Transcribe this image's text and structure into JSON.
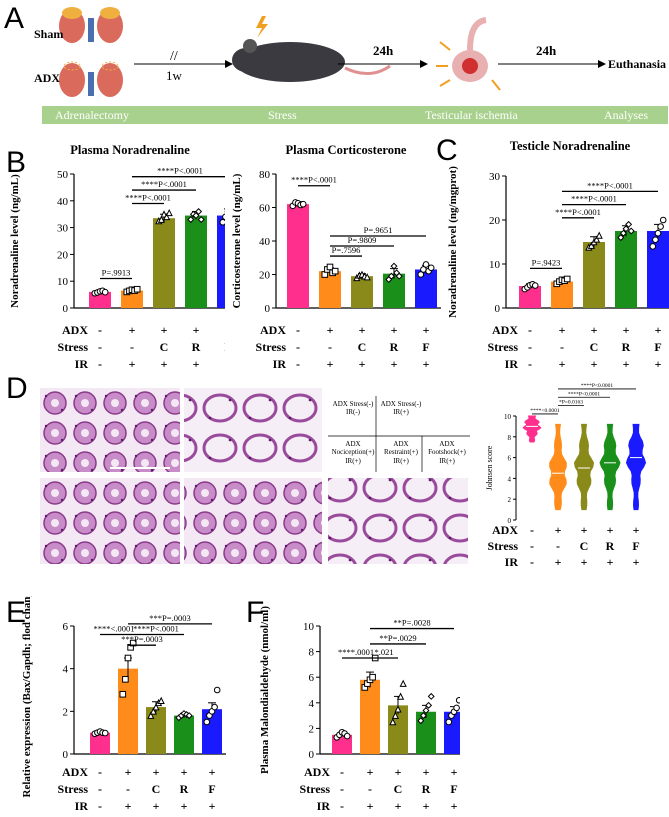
{
  "panels": {
    "A": "A",
    "B": "B",
    "C": "C",
    "D": "D",
    "E": "E",
    "F": "F"
  },
  "panelA": {
    "sham_label": "Sham",
    "adx_label": "ADX",
    "interval_1": "1w",
    "interval_2": "24h",
    "interval_3": "24h",
    "end_label": "Euthanasia",
    "stages": [
      "Adrenalectomy",
      "Stress",
      "Testicular ischemia",
      "Analyses"
    ]
  },
  "conditions": {
    "row_adx_label": "ADX",
    "row_stress_label": "Stress",
    "row_ir_label": "IR",
    "adx": [
      "-",
      "+",
      "+",
      "+",
      "+"
    ],
    "stress": [
      "-",
      "-",
      "C",
      "R",
      "F"
    ],
    "ir": [
      "-",
      "+",
      "+",
      "+",
      "+"
    ]
  },
  "colors": {
    "sham": "#ff2f8e",
    "adx": "#ff8c1a",
    "C": "#8a8a1a",
    "R": "#1a8f1a",
    "F": "#1a1aff"
  },
  "chart_data": [
    {
      "id": "plasma-noradrenaline",
      "type": "bar",
      "title": "Plasma Noradrenaline",
      "ylabel": "Noradrenaline level (ng/mL)",
      "ylim": [
        0,
        50
      ],
      "yticks": [
        0,
        10,
        20,
        30,
        40,
        50
      ],
      "values": [
        6,
        6.5,
        33.5,
        34.5,
        34.5
      ],
      "errors": [
        0.5,
        0.5,
        1.5,
        1.5,
        2.5
      ],
      "points": [
        [
          5.5,
          5.8,
          6.2,
          6.4,
          5.9
        ],
        [
          6,
          6.4,
          6.8,
          6.5,
          7
        ],
        [
          32.5,
          33,
          35,
          34,
          35.5
        ],
        [
          33,
          35,
          34.5,
          36,
          33
        ],
        [
          32,
          34,
          36,
          37,
          33
        ]
      ],
      "annotations": [
        {
          "text": "P=.9913",
          "from": 0,
          "to": 1,
          "y": 11
        },
        {
          "text": "****P<.0001",
          "from": 1,
          "to": 2,
          "y": 39
        },
        {
          "text": "****P<.0001",
          "from": 1,
          "to": 3,
          "y": 44
        },
        {
          "text": "****P<.0001",
          "from": 1,
          "to": 4,
          "y": 49
        }
      ]
    },
    {
      "id": "plasma-corticosterone",
      "type": "bar",
      "title": "Plasma Corticosterone",
      "ylabel": "Corticosterone level (ng/mL)",
      "ylim": [
        0,
        80
      ],
      "yticks": [
        0,
        20,
        40,
        60,
        80
      ],
      "values": [
        62,
        22,
        19,
        20.5,
        23
      ],
      "errors": [
        1.5,
        2,
        1.5,
        3,
        2.5
      ],
      "points": [
        [
          61,
          63,
          62.5,
          61.5,
          62
        ],
        [
          20,
          23,
          24.5,
          21,
          22
        ],
        [
          18,
          19.5,
          20,
          19,
          18.5
        ],
        [
          17,
          19,
          25,
          21,
          19
        ],
        [
          20,
          23,
          26,
          22,
          24
        ]
      ],
      "annotations": [
        {
          "text": "****P<.0001",
          "from": 0,
          "to": 1,
          "y": 73
        },
        {
          "text": "P=.7596",
          "from": 1,
          "to": 2,
          "y": 31
        },
        {
          "text": "P=.9809",
          "from": 1,
          "to": 3,
          "y": 37
        },
        {
          "text": "P=.9651",
          "from": 1,
          "to": 4,
          "y": 43
        }
      ]
    },
    {
      "id": "testicle-noradrenaline",
      "type": "bar",
      "title": "Testicle Noradrenaline",
      "ylabel": "Noradrenaline level (ng/mgprot)",
      "ylim": [
        0,
        30
      ],
      "yticks": [
        0,
        10,
        20,
        30
      ],
      "values": [
        5,
        6,
        15,
        17.5,
        17.5
      ],
      "errors": [
        0.5,
        0.5,
        1.2,
        1.2,
        1.5
      ],
      "points": [
        [
          4.3,
          4.7,
          5.2,
          5.4,
          5.1
        ],
        [
          5.5,
          6,
          6.4,
          6.2,
          6.6
        ],
        [
          13.8,
          14.2,
          15,
          15.6,
          16.5
        ],
        [
          16,
          17,
          18,
          19,
          17.5
        ],
        [
          14,
          15.5,
          17,
          18.5,
          20
        ]
      ],
      "annotations": [
        {
          "text": "P=.9423",
          "from": 0,
          "to": 1,
          "y": 9
        },
        {
          "text": "****P<.0001",
          "from": 1,
          "to": 2,
          "y": 20.5
        },
        {
          "text": "****P<.0001",
          "from": 1,
          "to": 3,
          "y": 23.5
        },
        {
          "text": "****P<.0001",
          "from": 1,
          "to": 4,
          "y": 26.5
        }
      ]
    },
    {
      "id": "johnsen-score",
      "type": "violin",
      "ylabel": "Johnsen score",
      "ylim": [
        0,
        10
      ],
      "yticks": [
        0,
        2,
        4,
        6,
        8,
        10
      ],
      "medians": [
        9,
        4.5,
        5,
        5.5,
        6
      ],
      "annotations": [
        {
          "text": "****<0.0001",
          "from": 0,
          "to": 1,
          "y": 10.2
        },
        {
          "text": "*P=0.0163",
          "from": 1,
          "to": 2,
          "y": 11
        },
        {
          "text": "****P<0.0001",
          "from": 1,
          "to": 3,
          "y": 11.8
        },
        {
          "text": "****P<0.0001",
          "from": 1,
          "to": 4,
          "y": 12.6
        }
      ]
    },
    {
      "id": "relative-expression",
      "type": "bar",
      "title": "",
      "ylabel": "Relative expression (Bax/Gapdh; flod change)",
      "ylim": [
        0,
        6
      ],
      "yticks": [
        0,
        2,
        4,
        6
      ],
      "values": [
        1,
        4,
        2.2,
        1.8,
        2.1
      ],
      "errors": [
        0.05,
        0.5,
        0.25,
        0.1,
        0.3
      ],
      "points": [
        [
          0.95,
          1,
          1.05,
          1,
          0.98
        ],
        [
          2.8,
          3.5,
          4.5,
          5,
          5.2
        ],
        [
          1.8,
          2,
          2.2,
          2.4,
          2.5
        ],
        [
          1.7,
          1.8,
          1.9,
          1.85,
          1.8
        ],
        [
          1.5,
          1.8,
          2,
          2.2,
          3
        ]
      ],
      "annotations": [
        {
          "text": "****<.0001",
          "from": 0,
          "to": 1,
          "y": 5.6
        },
        {
          "text": "***P=.0003",
          "from": 1,
          "to": 2,
          "y": 5.1
        },
        {
          "text": "****P<.0001",
          "from": 1,
          "to": 3,
          "y": 5.6
        },
        {
          "text": "***P=.0003",
          "from": 1,
          "to": 4,
          "y": 6.1
        }
      ]
    },
    {
      "id": "plasma-malondialdehyde",
      "type": "bar",
      "title": "",
      "ylabel": "Plasma Malondialdehyde (nmol/ml)",
      "ylim": [
        0,
        10
      ],
      "yticks": [
        0,
        2,
        4,
        6,
        8,
        10
      ],
      "values": [
        1.5,
        5.8,
        3.8,
        3.3,
        3.3
      ],
      "errors": [
        0.1,
        0.6,
        0.7,
        0.5,
        0.4
      ],
      "points": [
        [
          1.3,
          1.5,
          1.7,
          1.6,
          1.4
        ],
        [
          5.2,
          5.5,
          5.8,
          6,
          7.5
        ],
        [
          2.5,
          3,
          3.5,
          4.5,
          5.5
        ],
        [
          2.6,
          3,
          3.4,
          3.8,
          4.5
        ],
        [
          2.5,
          3,
          3.3,
          3.6,
          4.2
        ]
      ],
      "annotations": [
        {
          "text": "****.0001",
          "from": 0,
          "to": 1,
          "y": 7.5
        },
        {
          "text": "*.021",
          "from": 1,
          "to": 2,
          "y": 7.5
        },
        {
          "text": "**P=.0029",
          "from": 1,
          "to": 3,
          "y": 8.6
        },
        {
          "text": "**P=.0028",
          "from": 1,
          "to": 4,
          "y": 9.8
        }
      ]
    }
  ],
  "histology_legend": {
    "top": [
      "ADX Stress(-) IR(-)",
      "ADX Stress(-) IR(+)"
    ],
    "bottom": [
      "ADX Nociception(+) IR(+)",
      "ADX Restraint(+) IR(+)",
      "ADX Footshock(+) IR(+)"
    ]
  }
}
